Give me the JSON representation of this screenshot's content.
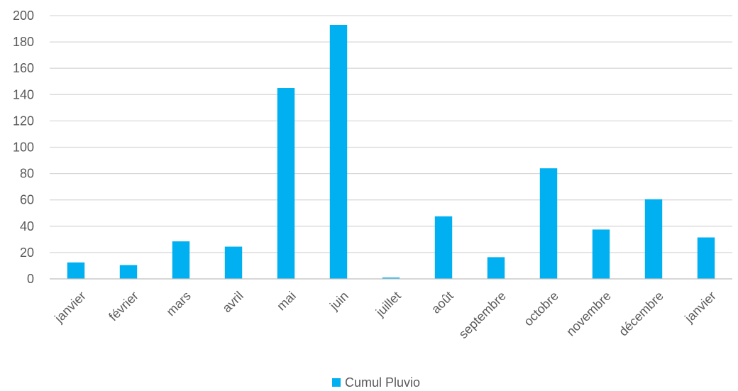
{
  "chart_data": {
    "type": "bar",
    "categories": [
      "janvier",
      "février",
      "mars",
      "avril",
      "mai",
      "juin",
      "juillet",
      "août",
      "septembre",
      "octobre",
      "novembre",
      "décembre",
      "janvier"
    ],
    "series": [
      {
        "name": "Cumul Pluvio",
        "color": "#00B0F0",
        "values": [
          12.5,
          10.5,
          28.5,
          24.5,
          145,
          193,
          1,
          47.5,
          16.5,
          84,
          37.5,
          60.5,
          31.5
        ]
      }
    ],
    "y_ticks": [
      "0",
      "20",
      "40",
      "60",
      "80",
      "100",
      "120",
      "140",
      "160",
      "180",
      "200"
    ],
    "ylim": [
      0,
      200
    ],
    "grid": true,
    "legend_position": "bottom",
    "gridline_color": "#d9d9d9",
    "axis_color": "#bfbfbf",
    "text_color": "#595959"
  }
}
